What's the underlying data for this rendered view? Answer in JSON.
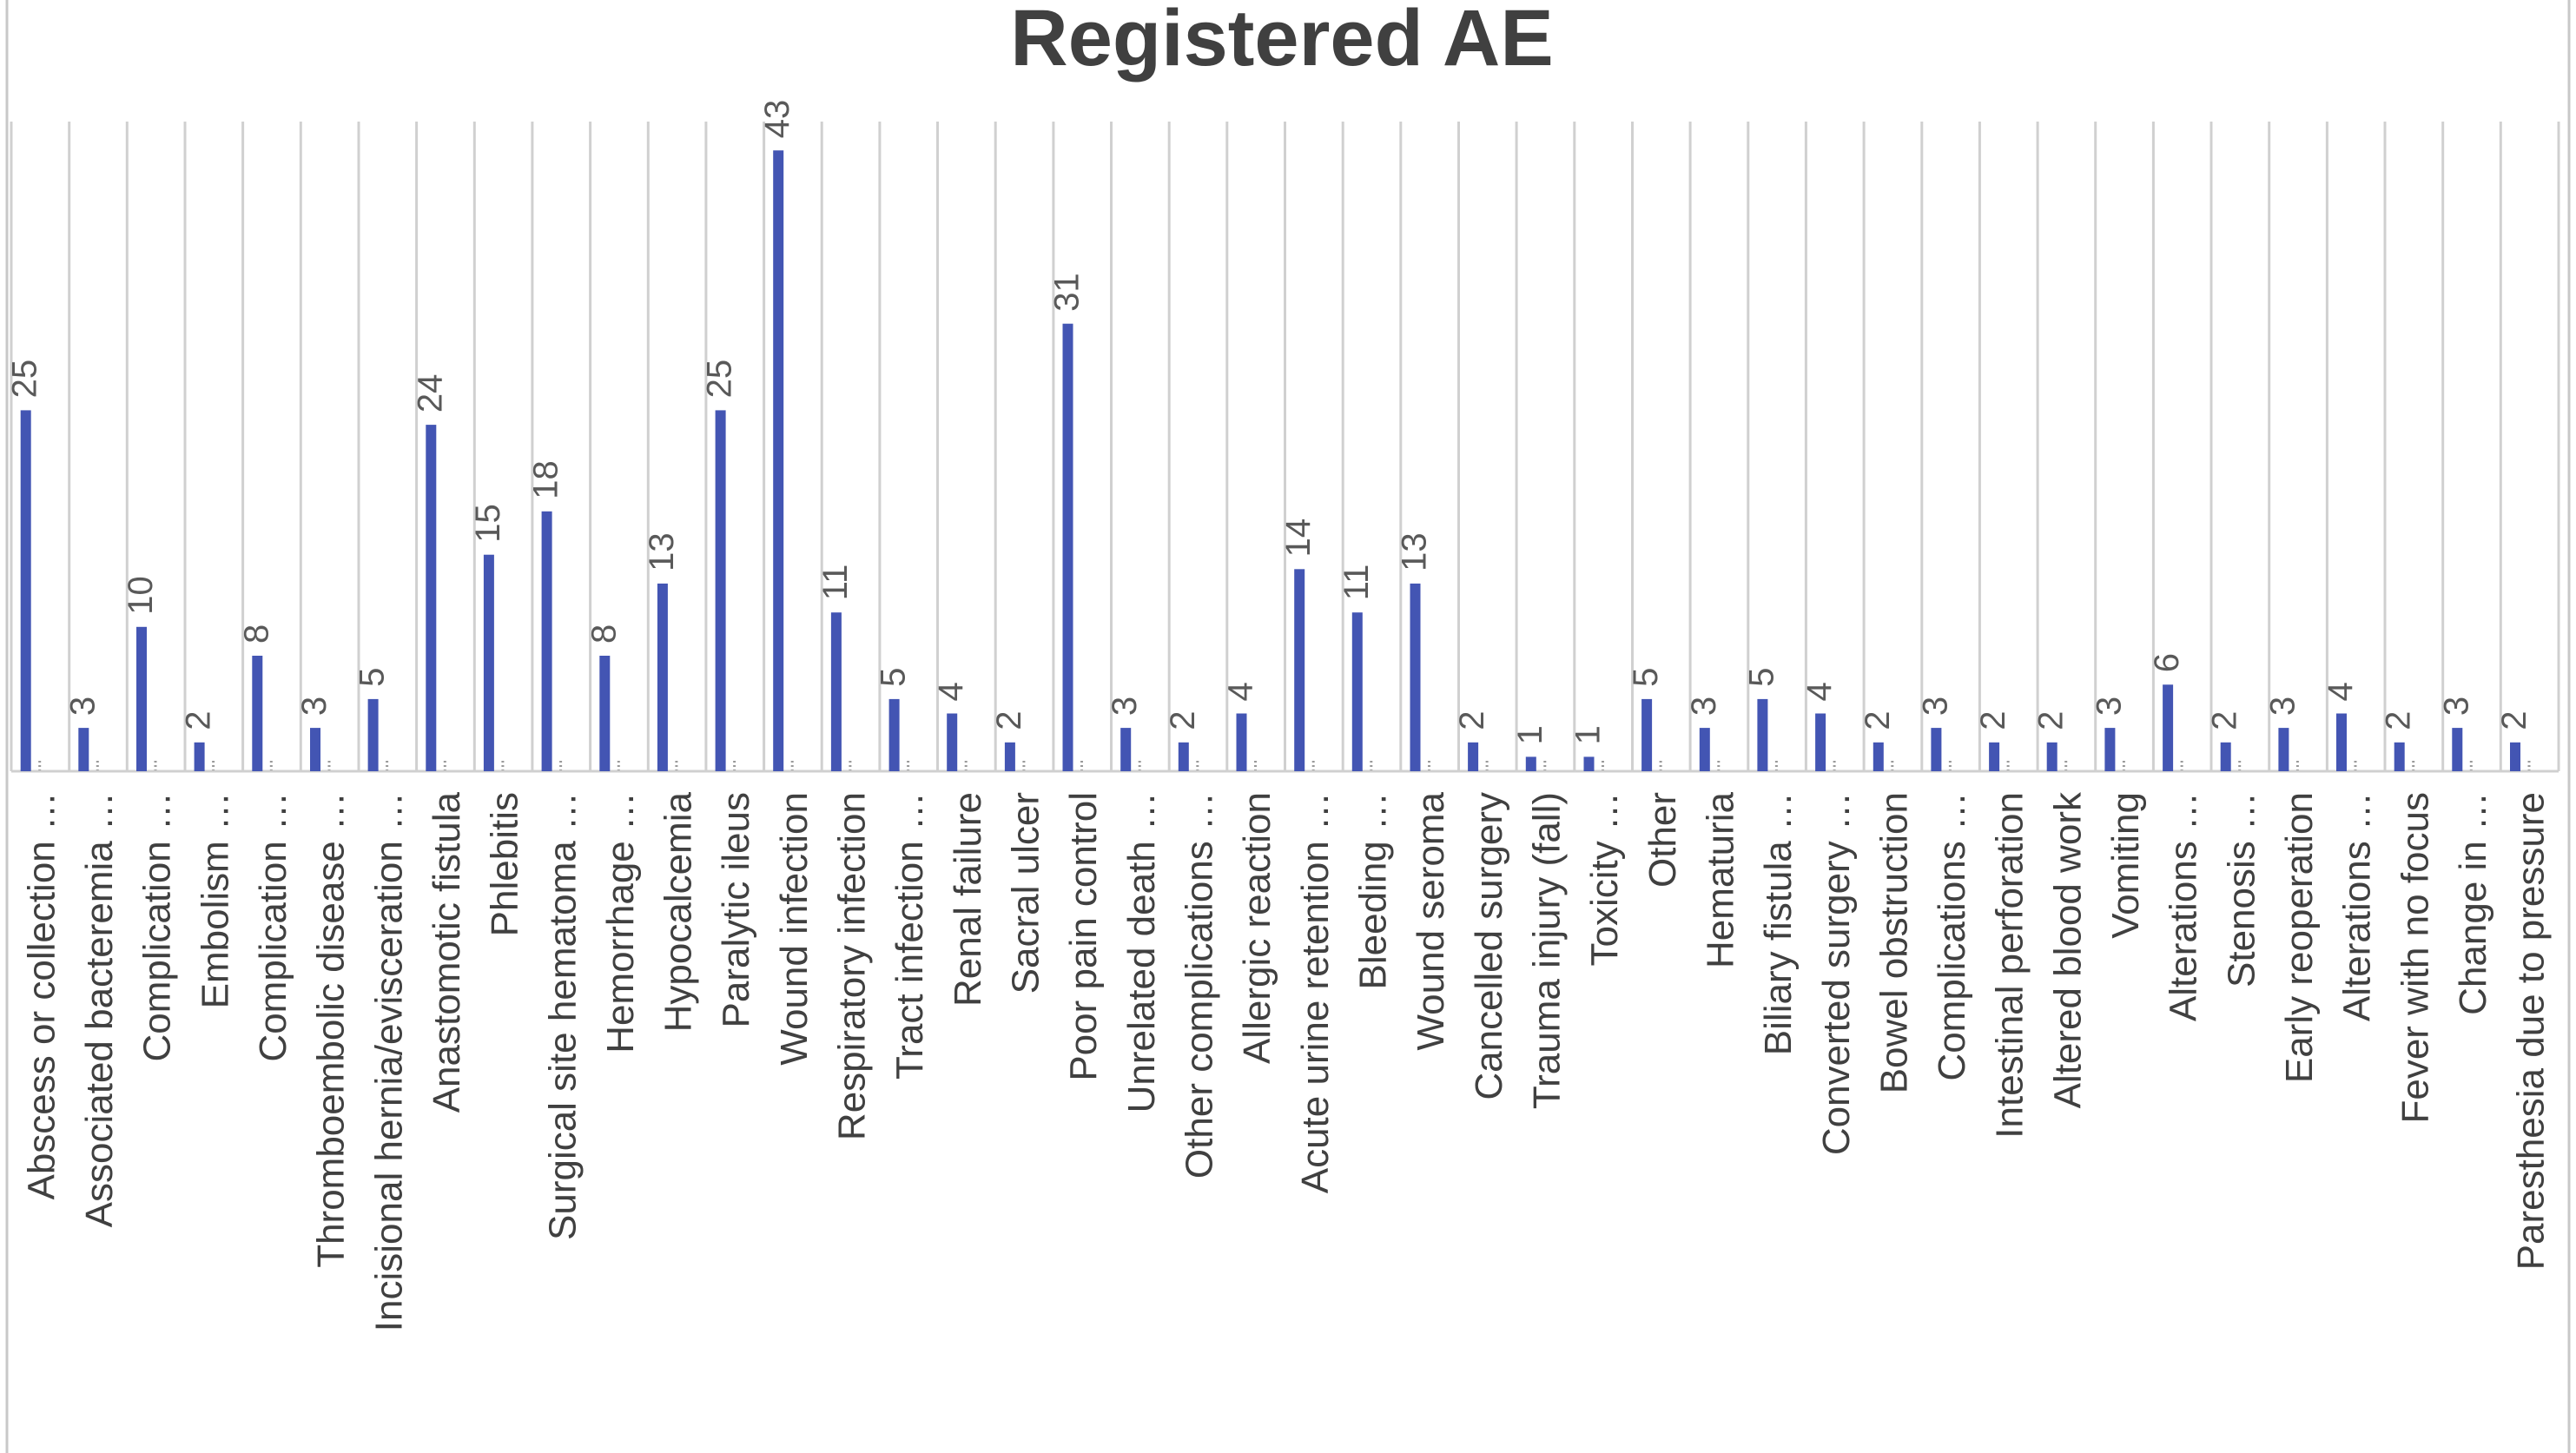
{
  "chart_data": {
    "type": "bar",
    "title": "Registered AE",
    "categories": [
      "Abscess or collection …",
      "Associated bacteremia …",
      "Complication …",
      "Embolism …",
      "Complication …",
      "Thromboembolic disease …",
      "Incisional hernia/evisceration …",
      "Anastomotic fistula",
      "Phlebitis",
      "Surgical site hematoma …",
      "Hemorrhage …",
      "Hypocalcemia",
      "Paralytic ileus",
      "Wound infection",
      "Respiratory infection",
      "Tract infection …",
      "Renal failure",
      "Sacral ulcer",
      "Poor pain control",
      "Unrelated death …",
      "Other complications …",
      "Allergic reaction",
      "Acute urine retention …",
      "Bleeding …",
      "Wound seroma",
      "Cancelled surgery",
      "Trauma injury (fall)",
      "Toxicity …",
      "Other",
      "Hematuria",
      "Biliary fistula …",
      "Converted surgery …",
      "Bowel obstruction",
      "Complications …",
      "Intestinal perforation",
      "Altered blood work",
      "Vomiting",
      "Alterations …",
      "Stenosis …",
      "Early reoperation",
      "Alterations …",
      "Fever with no focus",
      "Change in …",
      "Paresthesia due to pressure"
    ],
    "values": [
      25,
      3,
      10,
      2,
      8,
      3,
      5,
      24,
      15,
      18,
      8,
      13,
      25,
      43,
      11,
      5,
      4,
      2,
      31,
      3,
      2,
      4,
      14,
      11,
      13,
      2,
      1,
      1,
      5,
      3,
      5,
      4,
      2,
      3,
      2,
      2,
      3,
      6,
      2,
      3,
      4,
      2,
      3,
      2
    ],
    "ylim": [
      0,
      45
    ],
    "grid": true,
    "legend": "none",
    "bar_color": "#4355b3",
    "label_color": "#404040",
    "data_label_color": "#595959",
    "gridline_color": "#d0d0d0"
  }
}
